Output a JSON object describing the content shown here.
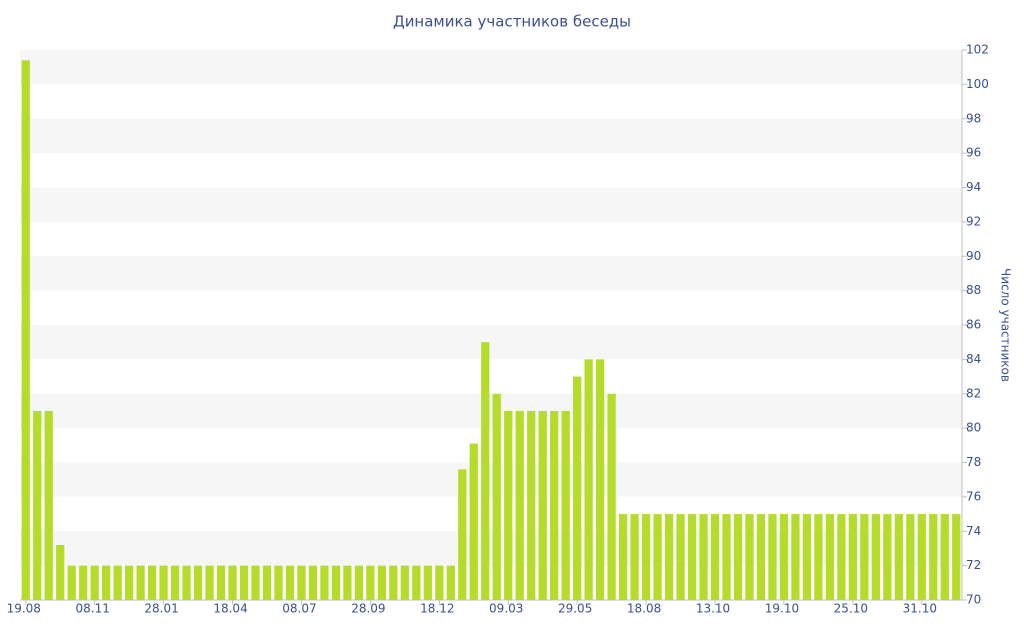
{
  "chart_data": {
    "type": "bar",
    "title": "Динамика участников беседы",
    "y_axis_label": "Число участников",
    "categories": [
      "19.08",
      null,
      null,
      null,
      null,
      null,
      "08.11",
      null,
      null,
      null,
      null,
      null,
      "28.01",
      null,
      null,
      null,
      null,
      null,
      "18.04",
      null,
      null,
      null,
      null,
      null,
      "08.07",
      null,
      null,
      null,
      null,
      null,
      "28.09",
      null,
      null,
      null,
      null,
      null,
      "18.12",
      null,
      null,
      null,
      null,
      null,
      "09.03",
      null,
      null,
      null,
      null,
      null,
      "29.05",
      null,
      null,
      null,
      null,
      null,
      "18.08",
      null,
      null,
      null,
      null,
      null,
      "13.10",
      null,
      null,
      null,
      null,
      null,
      "19.10",
      null,
      null,
      null,
      null,
      null,
      "25.10",
      null,
      null,
      null,
      null,
      null,
      "31.10",
      null,
      null,
      null
    ],
    "values": [
      101.4,
      81,
      81,
      73.2,
      72,
      72,
      72,
      72,
      72,
      72,
      72,
      72,
      72,
      72,
      72,
      72,
      72,
      72,
      72,
      72,
      72,
      72,
      72,
      72,
      72,
      72,
      72,
      72,
      72,
      72,
      72,
      72,
      72,
      72,
      72,
      72,
      72,
      72,
      77.6,
      79.1,
      85,
      82,
      81,
      81,
      81,
      81,
      81,
      81,
      83,
      84,
      84,
      82,
      75,
      75,
      75,
      75,
      75,
      75,
      75,
      75,
      75,
      75,
      75,
      75,
      75,
      75,
      75,
      75,
      75,
      75,
      75,
      75,
      75,
      75,
      75,
      75,
      75,
      75,
      75,
      75,
      75,
      75
    ],
    "color": "#b6dc2b",
    "ylim": [
      70,
      102
    ],
    "yticks": [
      70,
      72,
      74,
      76,
      78,
      80,
      82,
      84,
      86,
      88,
      90,
      92,
      94,
      96,
      98,
      100,
      102
    ],
    "y_axis_side": "right",
    "grid_bands": true
  }
}
